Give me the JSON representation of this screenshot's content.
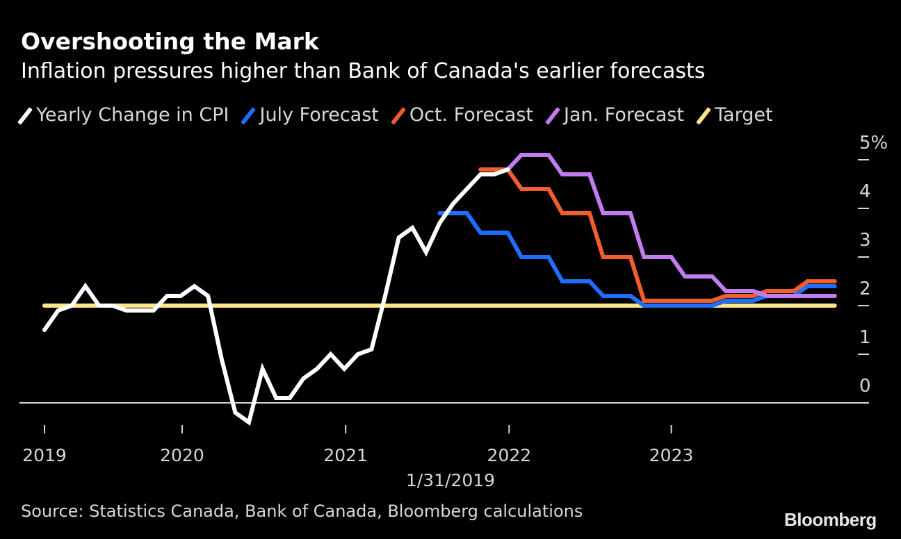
{
  "title": "Overshooting the Mark",
  "subtitle": "Inflation pressures higher than Bank of Canada's earlier forecasts",
  "source": "Source: Statistics Canada, Bank of Canada, Bloomberg calculations",
  "logo": "Bloomberg",
  "chart_data": {
    "type": "line",
    "title": "Overshooting the Mark",
    "subtitle": "Inflation pressures higher than Bank of Canada's earlier forecasts",
    "xlabel": "1/31/2019",
    "ylabel": "",
    "y_unit": "%",
    "ylim": [
      -0.6,
      5.3
    ],
    "yticks": [
      0,
      1,
      2,
      3,
      4,
      5
    ],
    "ytick_labels": [
      "0",
      "1",
      "2",
      "3",
      "4",
      "5%"
    ],
    "xticks": [
      {
        "label": "2019",
        "month_index": 0
      },
      {
        "label": "2020",
        "month_index": 10.1
      },
      {
        "label": "2021",
        "month_index": 22.1
      },
      {
        "label": "2022",
        "month_index": 34.1
      },
      {
        "label": "2023",
        "month_index": 46
      }
    ],
    "x_start": "2019-02",
    "x_end": "2023-12",
    "legend_position": "top-left",
    "grid": false,
    "series": [
      {
        "name": "Yearly Change in CPI",
        "color": "#ffffff",
        "start_index": 0,
        "values": [
          1.5,
          1.9,
          2.0,
          2.4,
          2.0,
          2.0,
          1.9,
          1.9,
          1.9,
          2.2,
          2.2,
          2.4,
          2.2,
          0.9,
          -0.2,
          -0.4,
          0.7,
          0.1,
          0.1,
          0.5,
          0.7,
          1.0,
          0.7,
          1.0,
          1.1,
          2.2,
          3.4,
          3.6,
          3.1,
          3.7,
          4.1,
          4.4,
          4.7,
          4.7,
          4.8
        ]
      },
      {
        "name": "July Forecast",
        "color": "#1f6fff",
        "start_index": 29,
        "values": [
          3.9,
          3.9,
          3.9,
          3.5,
          3.5,
          3.5,
          3.0,
          3.0,
          3.0,
          2.5,
          2.5,
          2.5,
          2.2,
          2.2,
          2.2,
          2.0,
          2.0,
          2.0,
          2.0,
          2.0,
          2.0,
          2.1,
          2.1,
          2.1,
          2.2,
          2.2,
          2.2,
          2.4,
          2.4,
          2.4
        ]
      },
      {
        "name": "Oct. Forecast",
        "color": "#f25d2e",
        "start_index": 32,
        "values": [
          4.8,
          4.8,
          4.8,
          4.4,
          4.4,
          4.4,
          3.9,
          3.9,
          3.9,
          3.0,
          3.0,
          3.0,
          2.1,
          2.1,
          2.1,
          2.1,
          2.1,
          2.1,
          2.2,
          2.2,
          2.2,
          2.3,
          2.3,
          2.3,
          2.5,
          2.5,
          2.5
        ]
      },
      {
        "name": "Jan. Forecast",
        "color": "#c27cf0",
        "start_index": 34,
        "values": [
          4.8,
          5.1,
          5.1,
          5.1,
          4.7,
          4.7,
          4.7,
          3.9,
          3.9,
          3.9,
          3.0,
          3.0,
          3.0,
          2.6,
          2.6,
          2.6,
          2.3,
          2.3,
          2.3,
          2.2,
          2.2,
          2.2,
          2.2,
          2.2,
          2.2
        ]
      },
      {
        "name": "Target",
        "color": "#fde68a",
        "start_index": 0,
        "values": [
          2.0,
          2.0,
          2.0,
          2.0,
          2.0,
          2.0,
          2.0,
          2.0,
          2.0,
          2.0,
          2.0,
          2.0,
          2.0,
          2.0,
          2.0,
          2.0,
          2.0,
          2.0,
          2.0,
          2.0,
          2.0,
          2.0,
          2.0,
          2.0,
          2.0,
          2.0,
          2.0,
          2.0,
          2.0,
          2.0,
          2.0,
          2.0,
          2.0,
          2.0,
          2.0,
          2.0,
          2.0,
          2.0,
          2.0,
          2.0,
          2.0,
          2.0,
          2.0,
          2.0,
          2.0,
          2.0,
          2.0,
          2.0,
          2.0,
          2.0,
          2.0,
          2.0,
          2.0,
          2.0,
          2.0,
          2.0,
          2.0,
          2.0,
          2.0
        ]
      }
    ]
  }
}
